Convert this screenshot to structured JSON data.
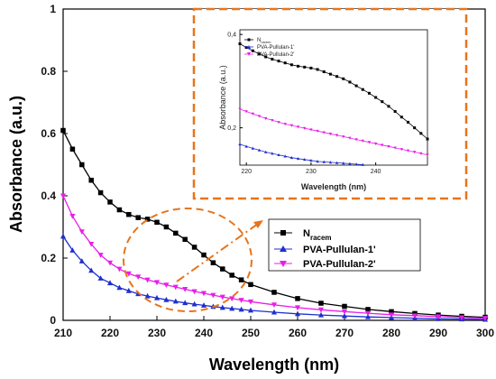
{
  "chart_data": [
    {
      "type": "line",
      "xlabel": "Wavelength (nm)",
      "ylabel": "Absorbance (a.u.)",
      "xlim": [
        210,
        300
      ],
      "ylim": [
        0,
        1
      ],
      "xticks": [
        "210",
        "220",
        "230",
        "240",
        "250",
        "260",
        "270",
        "280",
        "290",
        "300"
      ],
      "yticks": [
        "0",
        "0.2",
        "0.4",
        "0.6",
        "0.8",
        "1"
      ],
      "legend_position": "center-right",
      "series": [
        {
          "name": "N",
          "name_subscript": "racem",
          "color": "#000000",
          "marker": "square",
          "x": [
            210,
            212,
            214,
            216,
            218,
            220,
            222,
            224,
            226,
            228,
            230,
            232,
            234,
            236,
            238,
            240,
            242,
            244,
            246,
            248,
            250,
            255,
            260,
            265,
            270,
            275,
            280,
            285,
            290,
            295,
            300
          ],
          "values": [
            0.61,
            0.55,
            0.5,
            0.45,
            0.41,
            0.38,
            0.355,
            0.34,
            0.33,
            0.325,
            0.315,
            0.3,
            0.28,
            0.26,
            0.235,
            0.21,
            0.185,
            0.165,
            0.145,
            0.13,
            0.115,
            0.09,
            0.07,
            0.055,
            0.045,
            0.035,
            0.028,
            0.022,
            0.017,
            0.013,
            0.01
          ]
        },
        {
          "name": "PVA-Pullulan-1'",
          "color": "#1f2fcf",
          "marker": "triangle-up",
          "x": [
            210,
            212,
            214,
            216,
            218,
            220,
            222,
            224,
            226,
            228,
            230,
            232,
            234,
            236,
            238,
            240,
            242,
            244,
            246,
            248,
            250,
            255,
            260,
            265,
            270,
            275,
            280,
            285,
            290,
            295,
            300
          ],
          "values": [
            0.27,
            0.225,
            0.19,
            0.16,
            0.135,
            0.12,
            0.105,
            0.095,
            0.085,
            0.078,
            0.072,
            0.066,
            0.061,
            0.056,
            0.052,
            0.048,
            0.044,
            0.041,
            0.038,
            0.035,
            0.032,
            0.026,
            0.021,
            0.017,
            0.014,
            0.011,
            0.009,
            0.007,
            0.005,
            0.004,
            0.003
          ]
        },
        {
          "name": "PVA-Pullulan-2'",
          "color": "#e81fe8",
          "marker": "triangle-down",
          "x": [
            210,
            212,
            214,
            216,
            218,
            220,
            222,
            224,
            226,
            228,
            230,
            232,
            234,
            236,
            238,
            240,
            242,
            244,
            246,
            248,
            250,
            255,
            260,
            265,
            270,
            275,
            280,
            285,
            290,
            295,
            300
          ],
          "values": [
            0.4,
            0.335,
            0.285,
            0.245,
            0.21,
            0.185,
            0.165,
            0.15,
            0.14,
            0.13,
            0.122,
            0.114,
            0.107,
            0.1,
            0.093,
            0.087,
            0.081,
            0.075,
            0.07,
            0.065,
            0.06,
            0.05,
            0.041,
            0.034,
            0.028,
            0.023,
            0.018,
            0.015,
            0.012,
            0.009,
            0.007
          ]
        }
      ]
    },
    {
      "type": "line",
      "xlabel": "Wavelength (nm)",
      "ylabel": "Absorbance (a.u.)",
      "xlim": [
        219,
        248
      ],
      "ylim": [
        0.12,
        0.41
      ],
      "xticks": [
        "220",
        "230",
        "240"
      ],
      "yticks": [
        "0,2",
        "0,4"
      ],
      "legend_position": "top-left",
      "series": [
        {
          "name": "N",
          "name_subscript": "racem",
          "color": "#000000",
          "marker": "square",
          "x": [
            219,
            220,
            221,
            222,
            223,
            224,
            225,
            226,
            227,
            228,
            229,
            230,
            231,
            232,
            233,
            234,
            235,
            236,
            237,
            238,
            239,
            240,
            241,
            242,
            243,
            244,
            245,
            246,
            247,
            248
          ],
          "values": [
            0.38,
            0.372,
            0.365,
            0.358,
            0.352,
            0.347,
            0.343,
            0.339,
            0.335,
            0.332,
            0.33,
            0.328,
            0.325,
            0.32,
            0.315,
            0.31,
            0.305,
            0.298,
            0.29,
            0.282,
            0.274,
            0.265,
            0.256,
            0.246,
            0.235,
            0.223,
            0.212,
            0.2,
            0.188,
            0.176
          ]
        },
        {
          "name": "PVA-Pullulan-1'",
          "color": "#1f2fcf",
          "marker": "triangle-up",
          "x": [
            219,
            220,
            221,
            222,
            223,
            224,
            225,
            226,
            227,
            228,
            229,
            230,
            231,
            232,
            233,
            234,
            235,
            236,
            237,
            238
          ],
          "values": [
            0.165,
            0.16,
            0.156,
            0.152,
            0.148,
            0.145,
            0.142,
            0.139,
            0.136,
            0.134,
            0.132,
            0.13,
            0.128,
            0.127,
            0.126,
            0.125,
            0.124,
            0.123,
            0.122,
            0.121
          ]
        },
        {
          "name": "PVA-Pullulan-2'",
          "color": "#e81fe8",
          "marker": "triangle-down",
          "x": [
            219,
            220,
            221,
            222,
            223,
            224,
            225,
            226,
            227,
            228,
            229,
            230,
            231,
            232,
            233,
            234,
            235,
            236,
            237,
            238,
            239,
            240,
            241,
            242,
            243,
            244,
            245,
            246,
            247,
            248
          ],
          "values": [
            0.24,
            0.235,
            0.23,
            0.225,
            0.22,
            0.216,
            0.212,
            0.208,
            0.205,
            0.202,
            0.199,
            0.196,
            0.193,
            0.19,
            0.187,
            0.184,
            0.181,
            0.178,
            0.175,
            0.172,
            0.169,
            0.166,
            0.163,
            0.16,
            0.157,
            0.154,
            0.151,
            0.148,
            0.145,
            0.142
          ]
        }
      ]
    }
  ],
  "annotation_color": "#e8741a"
}
